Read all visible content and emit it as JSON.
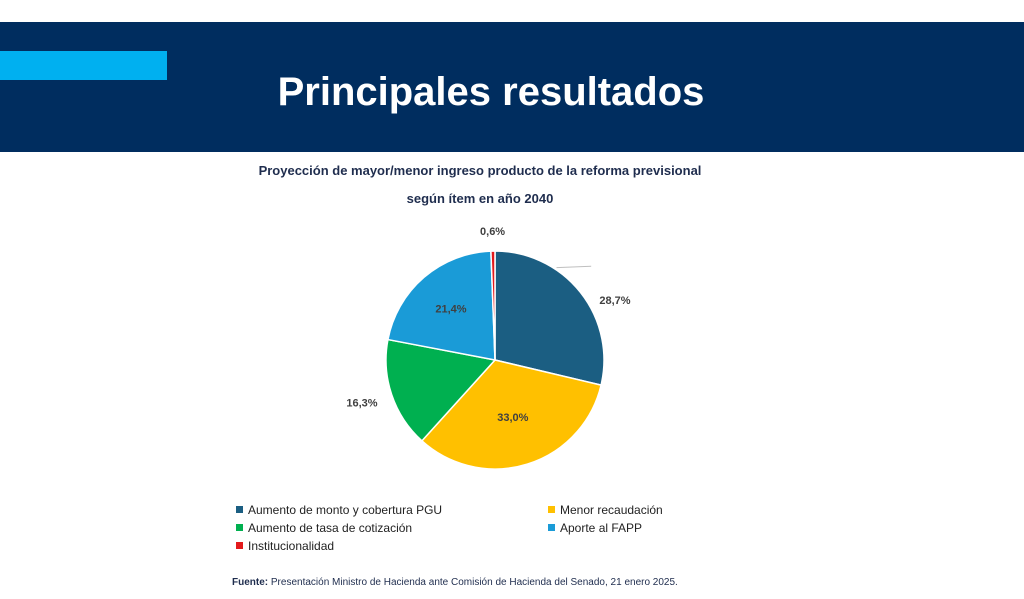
{
  "slide": {
    "title": "Principales resultados"
  },
  "chart_data": {
    "type": "pie",
    "title_line1": "Proyección de mayor/menor ingreso producto de la reforma previsional",
    "title_line2": "según ítem en año 2040",
    "slices": [
      {
        "name": "Aumento de monto y cobertura PGU",
        "value": 28.7,
        "label": "28,7%",
        "color": "#1b5e82"
      },
      {
        "name": "Menor recaudación",
        "value": 33.0,
        "label": "33,0%",
        "color": "#ffc000"
      },
      {
        "name": "Aumento de tasa de cotización",
        "value": 16.3,
        "label": "16,3%",
        "color": "#00b050"
      },
      {
        "name": "Aporte al FAPP",
        "value": 21.4,
        "label": "21,4%",
        "color": "#1a9bd7"
      },
      {
        "name": "Institucionalidad",
        "value": 0.6,
        "label": "0,6%",
        "color": "#e31a1c"
      }
    ]
  },
  "source": {
    "label": "Fuente:",
    "text": "Presentación Ministro de Hacienda ante Comisión de Hacienda del Senado, 21 enero 2025."
  }
}
